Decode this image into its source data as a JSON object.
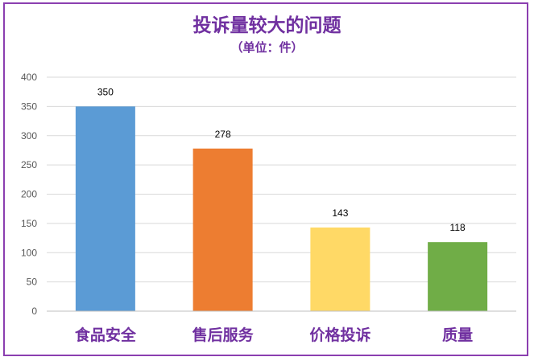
{
  "colors": {
    "frame": "#8b3fb0",
    "title": "#7030a0",
    "grid": "#d9d9d9",
    "axis_text": "#595959",
    "category_text": "#7030a0"
  },
  "chart_data": {
    "type": "bar",
    "title": "投诉量较大的问题",
    "subtitle": "（单位：件）",
    "xlabel": "",
    "ylabel": "",
    "categories": [
      "食品安全",
      "售后服务",
      "价格投诉",
      "质量"
    ],
    "values": [
      350,
      278,
      143,
      118
    ],
    "bar_colors": [
      "#5b9bd5",
      "#ed7d31",
      "#ffd966",
      "#70ad47"
    ],
    "ylim": [
      0,
      400
    ],
    "yticks": [
      0,
      50,
      100,
      150,
      200,
      250,
      300,
      350,
      400
    ],
    "grid": true,
    "legend": "none"
  }
}
